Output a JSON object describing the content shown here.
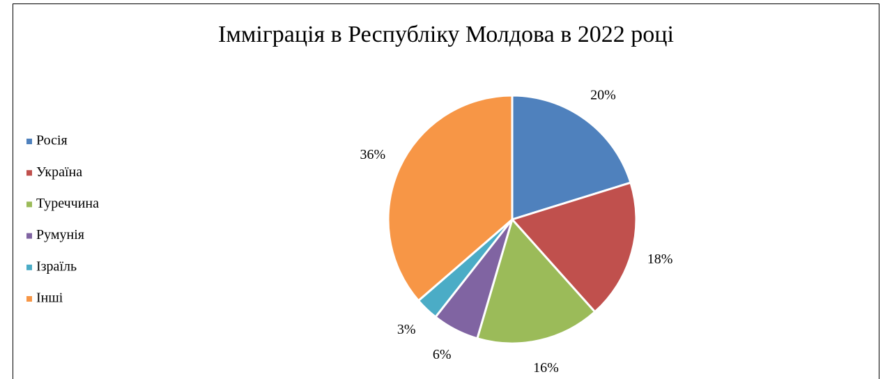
{
  "chart_data": {
    "type": "pie",
    "title": "Імміграція в Республіку Молдова в 2022 році",
    "categories": [
      "Росія",
      "Україна",
      "Туреччина",
      "Румунія",
      "Ізраїль",
      "Інші"
    ],
    "values": [
      20,
      18,
      16,
      6,
      3,
      36
    ],
    "value_labels": [
      "20%",
      "18%",
      "16%",
      "6%",
      "3%",
      "36%"
    ],
    "colors": [
      "#4f81bd",
      "#c0504d",
      "#9bbb59",
      "#8064a2",
      "#4bacc6",
      "#f79646"
    ],
    "legend": "left"
  }
}
